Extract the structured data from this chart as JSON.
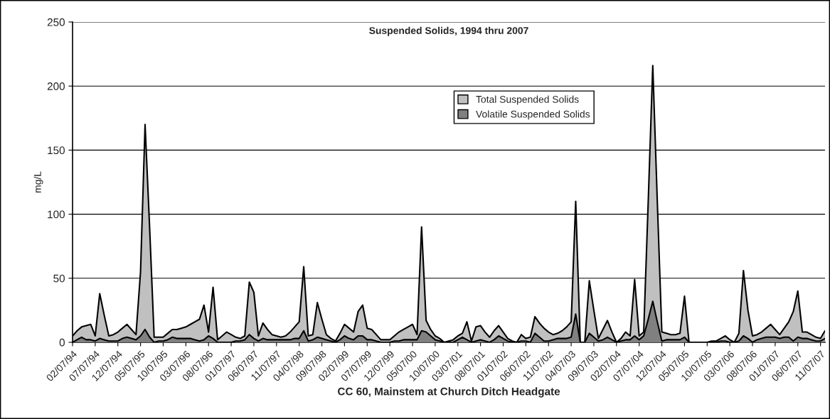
{
  "chart_data": {
    "type": "area",
    "title": "Suspended Solids, 1994 thru 2007",
    "xlabel": "CC 60, Mainstem at Church Ditch Headgate",
    "ylabel": "mg/L",
    "categories": [
      "02/07/94",
      null,
      null,
      null,
      null,
      "07/07/94",
      null,
      null,
      null,
      null,
      "12/07/94",
      null,
      null,
      null,
      null,
      "05/07/95",
      null,
      null,
      null,
      null,
      "10/07/95",
      null,
      null,
      null,
      null,
      "03/07/96",
      null,
      null,
      null,
      null,
      "08/07/96",
      null,
      null,
      null,
      null,
      "01/07/97",
      null,
      null,
      null,
      null,
      "06/07/97",
      null,
      null,
      null,
      null,
      "11/07/97",
      null,
      null,
      null,
      null,
      "04/07/98",
      null,
      null,
      null,
      null,
      "09/07/98",
      null,
      null,
      null,
      null,
      "02/07/99",
      null,
      null,
      null,
      null,
      "07/07/99",
      null,
      null,
      null,
      null,
      "12/07/99",
      null,
      null,
      null,
      null,
      "05/07/00",
      null,
      null,
      null,
      null,
      "10/07/00",
      null,
      null,
      null,
      null,
      "03/07/01",
      null,
      null,
      null,
      null,
      "08/07/01",
      null,
      null,
      null,
      null,
      "01/07/02",
      null,
      null,
      null,
      null,
      "06/07/02",
      null,
      null,
      null,
      null,
      "11/07/02",
      null,
      null,
      null,
      null,
      "04/07/03",
      null,
      null,
      null,
      null,
      "09/07/03",
      null,
      null,
      null,
      null,
      "02/07/04",
      null,
      null,
      null,
      null,
      "07/07/04",
      null,
      null,
      null,
      null,
      "12/07/04",
      null,
      null,
      null,
      null,
      "05/07/05",
      null,
      null,
      null,
      null,
      "10/07/05",
      null,
      null,
      null,
      null,
      "03/07/06",
      null,
      null,
      null,
      null,
      "08/07/06",
      null,
      null,
      null,
      null,
      "01/07/07",
      null,
      null,
      null,
      null,
      "06/07/07",
      null,
      null,
      null,
      null,
      "11/07/07",
      null
    ],
    "series": [
      {
        "name": "Total Suspended Solids",
        "color": "#c0c0c0",
        "values": [
          5,
          9,
          12,
          13,
          14,
          5,
          38,
          21,
          5,
          6,
          8,
          11,
          14,
          10,
          6,
          55,
          170,
          90,
          4,
          4,
          4,
          7,
          10,
          10,
          11,
          12,
          14,
          16,
          18,
          29,
          8,
          43,
          2,
          5,
          8,
          6,
          4,
          3,
          5,
          47,
          39,
          5,
          15,
          10,
          6,
          5,
          4,
          5,
          8,
          12,
          16,
          59,
          5,
          6,
          31,
          18,
          6,
          3,
          1,
          7,
          14,
          11,
          8,
          24,
          29,
          11,
          10,
          6,
          2,
          2,
          2,
          5,
          8,
          10,
          12,
          14,
          6,
          90,
          17,
          10,
          5,
          3,
          0,
          1,
          2,
          5,
          7,
          16,
          1,
          12,
          13,
          8,
          4,
          9,
          13,
          8,
          3,
          1,
          0,
          6,
          3,
          4,
          20,
          15,
          11,
          8,
          6,
          7,
          9,
          12,
          16,
          110,
          0,
          0,
          48,
          25,
          3,
          10,
          17,
          8,
          0,
          3,
          8,
          5,
          49,
          5,
          8,
          110,
          216,
          110,
          8,
          7,
          6,
          6,
          7,
          36,
          0,
          0,
          0,
          0,
          0,
          1,
          1,
          3,
          5,
          2,
          0,
          7,
          56,
          25,
          5,
          6,
          8,
          11,
          14,
          10,
          6,
          11,
          16,
          24,
          40,
          8,
          8,
          6,
          4,
          3,
          9
        ]
      },
      {
        "name": "Volatile Suspended Solids",
        "color": "#808080",
        "values": [
          0,
          2,
          4,
          2,
          2,
          1,
          3,
          2,
          1,
          1,
          1,
          3,
          4,
          3,
          2,
          5,
          10,
          4,
          0,
          1,
          1,
          2,
          4,
          3,
          3,
          3,
          3,
          2,
          1,
          2,
          5,
          3,
          0,
          0,
          0,
          0,
          1,
          1,
          2,
          6,
          3,
          1,
          3,
          2,
          2,
          2,
          2,
          2,
          2,
          3,
          3,
          9,
          1,
          2,
          4,
          3,
          2,
          1,
          0,
          2,
          5,
          3,
          2,
          5,
          5,
          2,
          2,
          1,
          0,
          0,
          0,
          1,
          1,
          2,
          2,
          2,
          2,
          9,
          8,
          5,
          2,
          1,
          0,
          0,
          0,
          2,
          4,
          2,
          0,
          1,
          2,
          1,
          0,
          2,
          5,
          3,
          1,
          0,
          0,
          1,
          1,
          0,
          7,
          4,
          1,
          1,
          2,
          3,
          3,
          3,
          4,
          22,
          0,
          0,
          7,
          4,
          1,
          2,
          4,
          2,
          0,
          1,
          2,
          2,
          5,
          2,
          5,
          18,
          32,
          16,
          1,
          2,
          2,
          2,
          2,
          4,
          0,
          0,
          0,
          0,
          0,
          0,
          0,
          1,
          1,
          0,
          0,
          1,
          5,
          3,
          0,
          2,
          3,
          4,
          4,
          4,
          3,
          4,
          4,
          1,
          4,
          3,
          3,
          2,
          1,
          1,
          3
        ]
      }
    ],
    "ylim": [
      0,
      250
    ],
    "yticks": [
      0,
      50,
      100,
      150,
      200,
      250
    ],
    "grid": "y",
    "legend": "top center",
    "marker": "none",
    "line_style": "solid"
  }
}
